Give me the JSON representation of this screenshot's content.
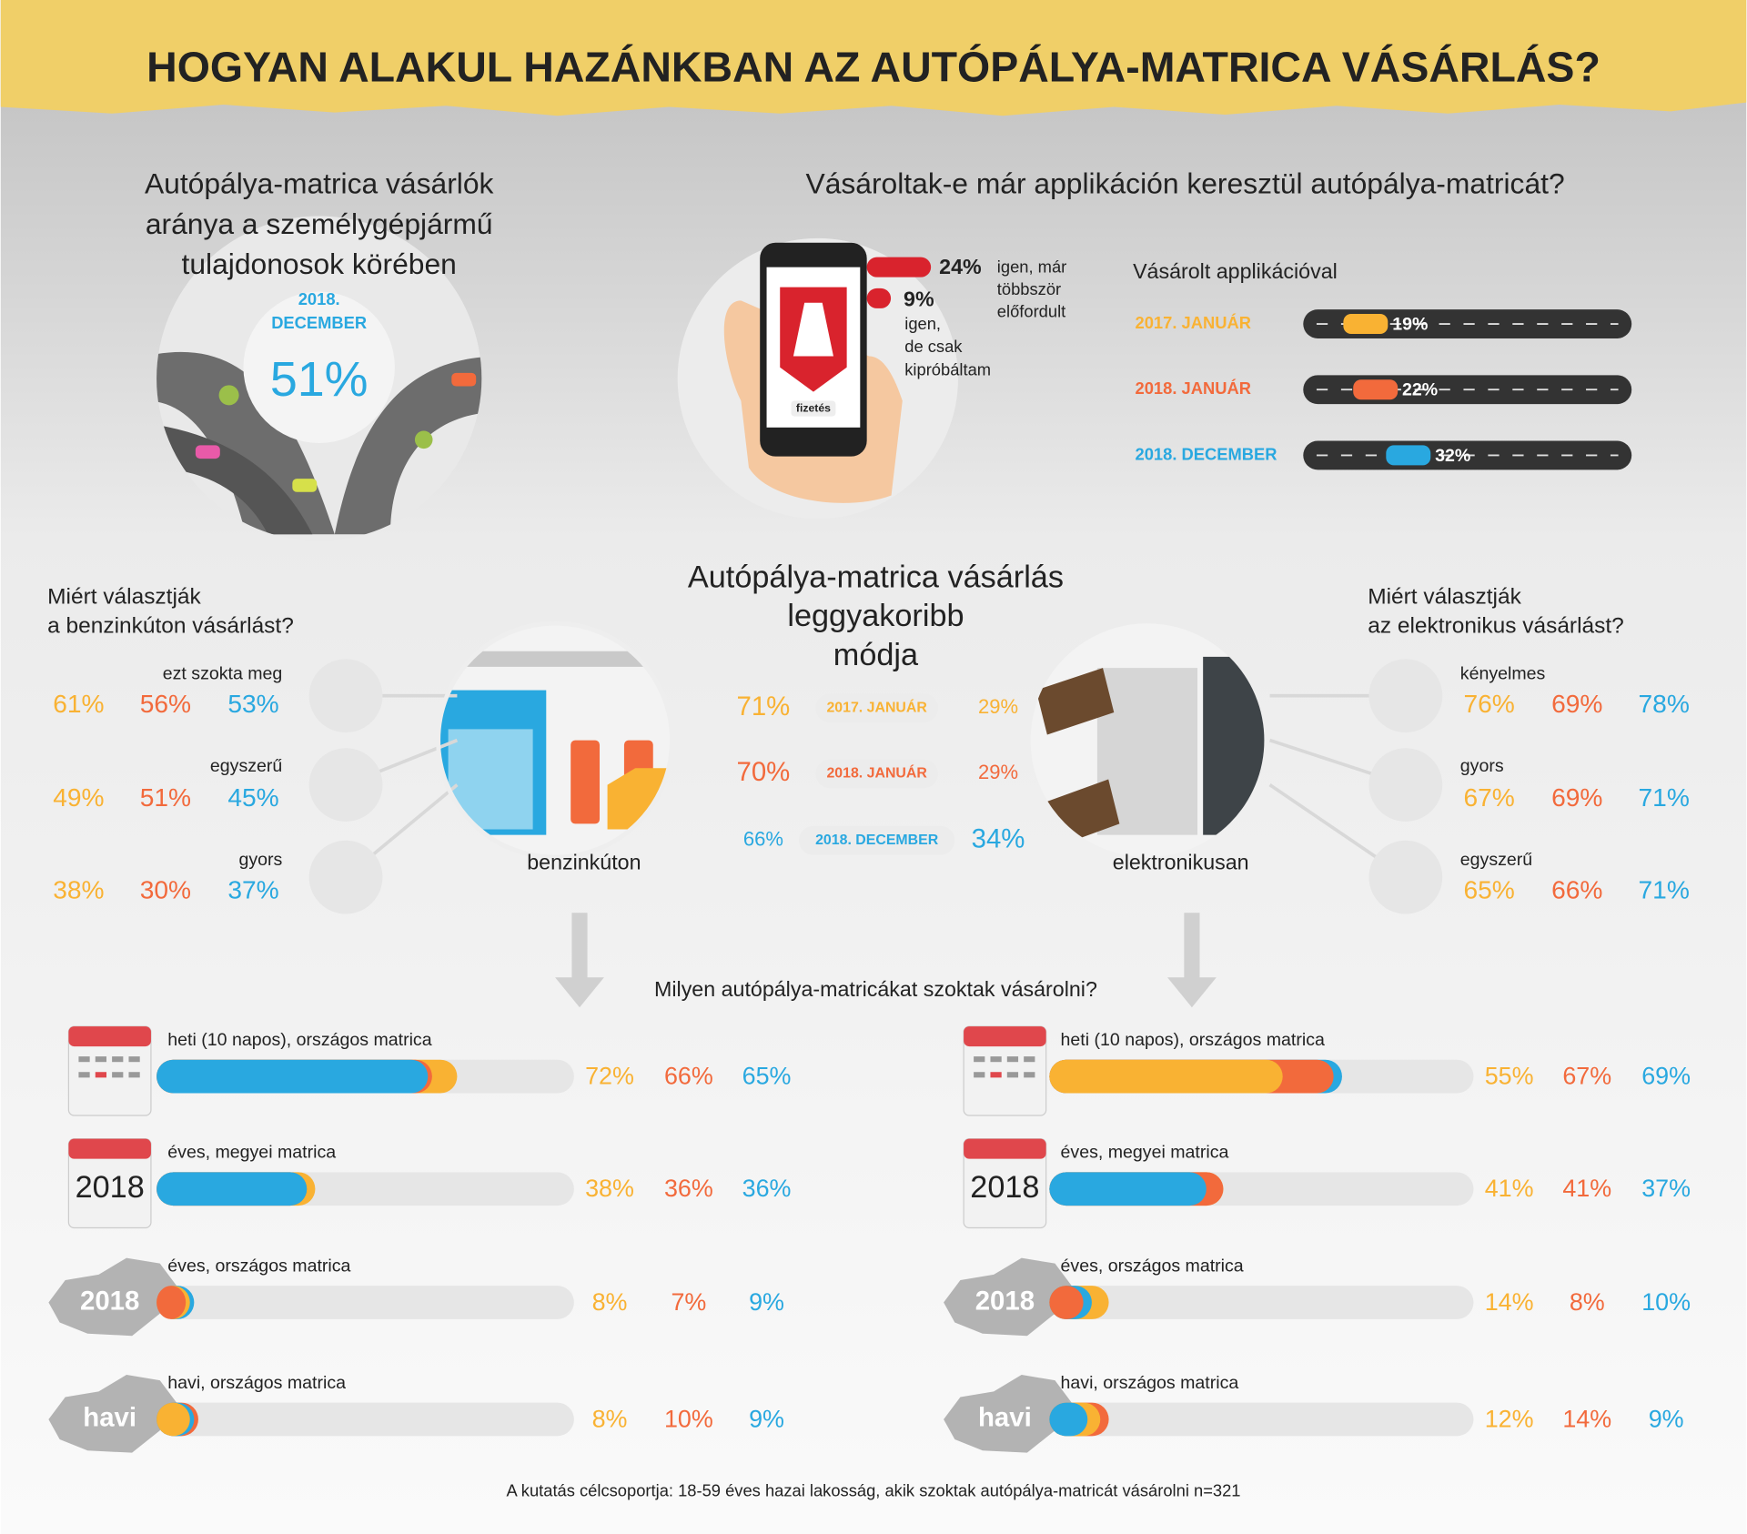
{
  "title": "HOGYAN ALAKUL HAZÁNKBAN AZ AUTÓPÁLYA-MATRICA VÁSÁRLÁS?",
  "series_colors": [
    "#f9b233",
    "#f26a3c",
    "#29a8e0"
  ],
  "ownership": {
    "title_lines": [
      "Autópálya-matrica vásárlók",
      "aránya a személygépjármű",
      "tulajdonosok körében"
    ],
    "date_lines": [
      "2018.",
      "DECEMBER"
    ],
    "value": "51%"
  },
  "app": {
    "title": "Vásároltak-e már applikáción keresztül autópálya-matricát?",
    "screen_label": "fizetés",
    "answer_color": "#d9232d",
    "answers": [
      {
        "value": 24,
        "value_label": "24%",
        "text_lines": [
          "igen, már",
          "többször",
          "előfordult"
        ]
      },
      {
        "value": 9,
        "value_label": "9%",
        "text_lines": [
          "igen,",
          "de csak",
          "kipróbáltam"
        ]
      }
    ],
    "trend_title": "Vásárolt applikációval",
    "periods": [
      "2017. JANUÁR",
      "2018. JANUÁR",
      "2018. DECEMBER"
    ],
    "values": [
      19,
      22,
      32
    ],
    "value_labels": [
      "19%",
      "22%",
      "32%"
    ]
  },
  "gas_reasons": {
    "title_lines": [
      "Miért választják",
      "a benzinkúton vásárlást?"
    ],
    "items": [
      {
        "label": "ezt szokta meg",
        "values": [
          "61%",
          "56%",
          "53%"
        ]
      },
      {
        "label": "egyszerű",
        "values": [
          "49%",
          "51%",
          "45%"
        ]
      },
      {
        "label": "gyors",
        "values": [
          "38%",
          "30%",
          "37%"
        ]
      }
    ]
  },
  "mode": {
    "title_lines": [
      "Autópálya-matrica vásárlás",
      "leggyakoribb",
      "módja"
    ],
    "channels": [
      "benzinkúton",
      "elektronikusan"
    ],
    "rows": [
      {
        "period": "2017. JANUÁR",
        "gas": "71%",
        "electronic": "29%"
      },
      {
        "period": "2018. JANUÁR",
        "gas": "70%",
        "electronic": "29%"
      },
      {
        "period": "2018. DECEMBER",
        "gas": "66%",
        "electronic": "34%"
      }
    ]
  },
  "electronic_reasons": {
    "title_lines": [
      "Miért választják",
      "az elektronikus vásárlást?"
    ],
    "items": [
      {
        "label": "kényelmes",
        "values": [
          "76%",
          "69%",
          "78%"
        ]
      },
      {
        "label": "gyors",
        "values": [
          "67%",
          "69%",
          "71%"
        ]
      },
      {
        "label": "egyszerű",
        "values": [
          "65%",
          "66%",
          "71%"
        ]
      }
    ]
  },
  "types": {
    "title": "Milyen autópálya-matricákat szoktak vásárolni?",
    "groups": [
      {
        "items": [
          {
            "label": "heti (10 napos), országos matrica",
            "values": [
              72,
              66,
              65
            ],
            "value_labels": [
              "72%",
              "66%",
              "65%"
            ]
          },
          {
            "label": "éves, megyei matrica",
            "icon_label": "2018",
            "values": [
              38,
              36,
              36
            ],
            "value_labels": [
              "38%",
              "36%",
              "36%"
            ]
          },
          {
            "label": "éves, országos matrica",
            "icon_label": "2018",
            "values": [
              8,
              7,
              9
            ],
            "value_labels": [
              "8%",
              "7%",
              "9%"
            ]
          },
          {
            "label": "havi, országos matrica",
            "icon_label": "havi",
            "values": [
              8,
              10,
              9
            ],
            "value_labels": [
              "8%",
              "10%",
              "9%"
            ]
          }
        ]
      },
      {
        "items": [
          {
            "label": "heti (10 napos), országos matrica",
            "values": [
              55,
              67,
              69
            ],
            "value_labels": [
              "55%",
              "67%",
              "69%"
            ]
          },
          {
            "label": "éves, megyei matrica",
            "icon_label": "2018",
            "values": [
              41,
              41,
              37
            ],
            "value_labels": [
              "41%",
              "41%",
              "37%"
            ]
          },
          {
            "label": "éves, országos matrica",
            "icon_label": "2018",
            "values": [
              14,
              8,
              10
            ],
            "value_labels": [
              "14%",
              "8%",
              "10%"
            ]
          },
          {
            "label": "havi, országos matrica",
            "icon_label": "havi",
            "values": [
              12,
              14,
              9
            ],
            "value_labels": [
              "12%",
              "14%",
              "9%"
            ]
          }
        ]
      }
    ]
  },
  "footnote": "A kutatás célcsoportja: 18-59 éves hazai lakosság, akik szoktak autópálya-matricát vásárolni n=321"
}
